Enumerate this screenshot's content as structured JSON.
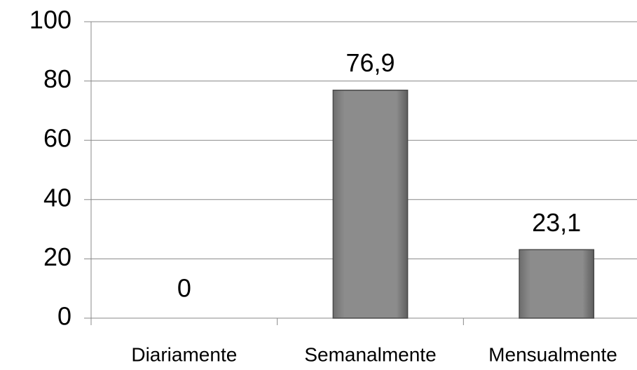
{
  "chart_data": {
    "type": "bar",
    "categories": [
      "Diariamente",
      "Semanalmente",
      "Mensualmente"
    ],
    "values": [
      0,
      76.9,
      23.1
    ],
    "value_labels": [
      "0",
      "76,9",
      "23,1"
    ],
    "color": "#8a8a8a",
    "ylim": [
      0,
      100
    ],
    "yticks": [
      0,
      20,
      40,
      60,
      80,
      100
    ],
    "grid": true
  }
}
